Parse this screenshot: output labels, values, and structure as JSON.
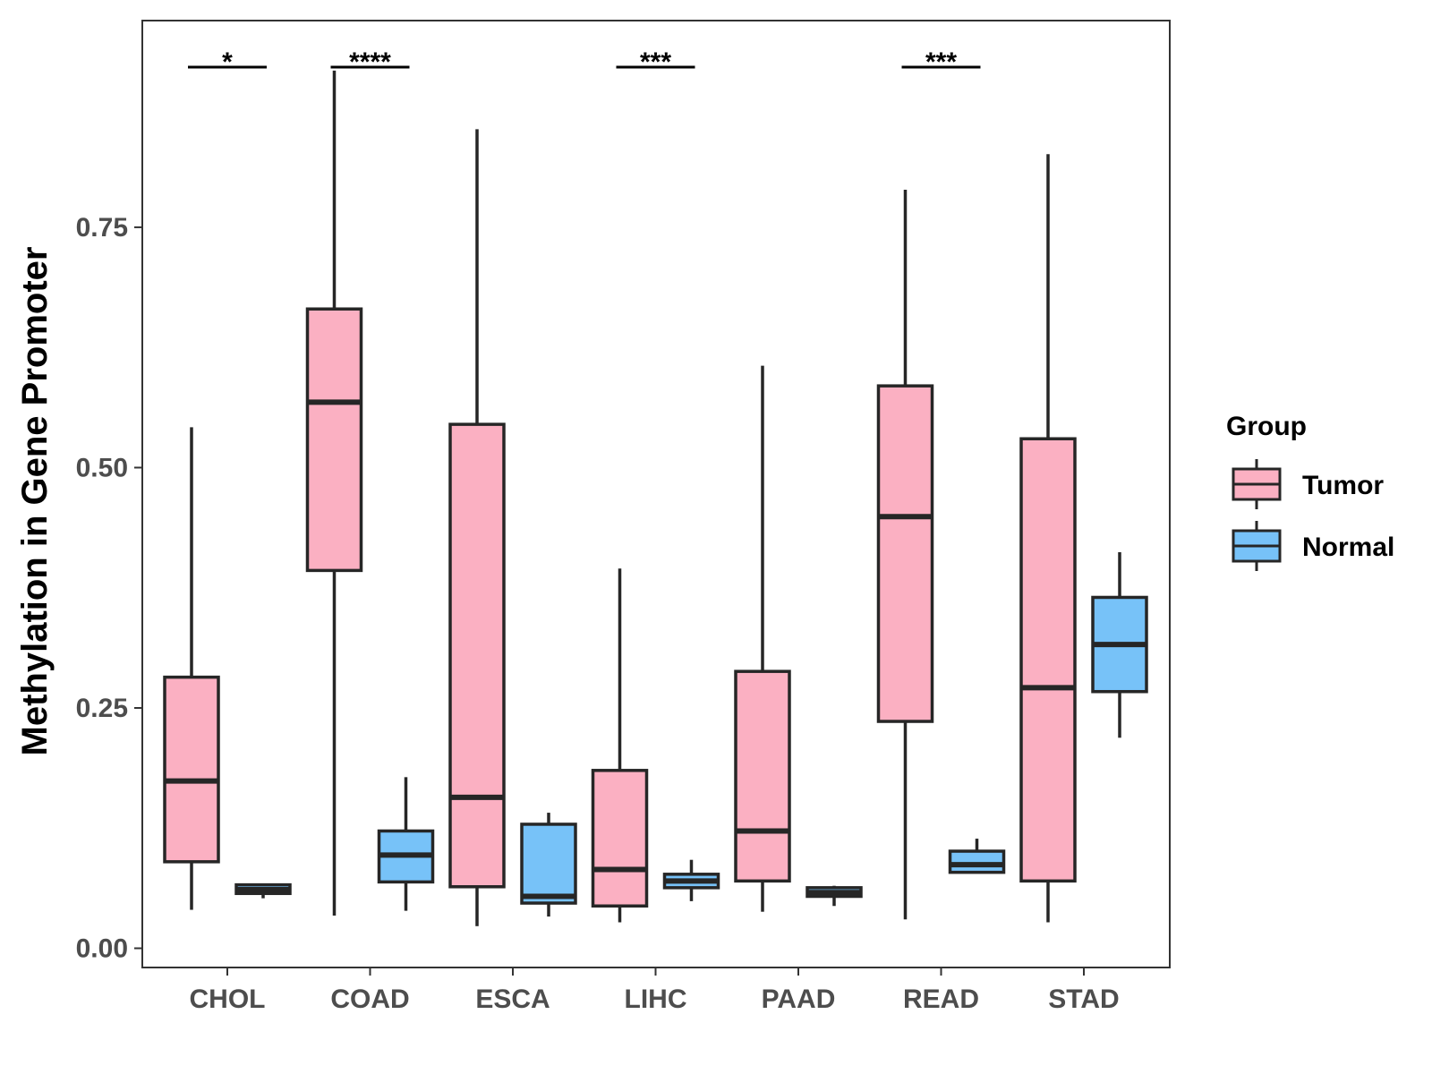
{
  "chart_data": {
    "type": "boxplot",
    "title": "",
    "xlabel": "",
    "ylabel": "Methylation in Gene Promoter",
    "ylim": [
      -0.02,
      0.965
    ],
    "yticks": [
      0.0,
      0.25,
      0.5,
      0.75
    ],
    "ytick_labels": [
      "0.00",
      "0.25",
      "0.50",
      "0.75"
    ],
    "grid": false,
    "categories": [
      "CHOL",
      "COAD",
      "ESCA",
      "LIHC",
      "PAAD",
      "READ",
      "STAD"
    ],
    "legend": {
      "title": "Group",
      "position": "right",
      "entries": [
        {
          "name": "Tumor",
          "color": "#FBB0C2"
        },
        {
          "name": "Normal",
          "color": "#77C2F8"
        }
      ]
    },
    "series": [
      {
        "name": "Tumor",
        "color": "#FBB0C2",
        "boxes": [
          {
            "min": 0.04,
            "q1": 0.09,
            "median": 0.174,
            "q3": 0.282,
            "max": 0.542
          },
          {
            "min": 0.034,
            "q1": 0.393,
            "median": 0.568,
            "q3": 0.665,
            "max": 0.913
          },
          {
            "min": 0.023,
            "q1": 0.064,
            "median": 0.157,
            "q3": 0.545,
            "max": 0.852
          },
          {
            "min": 0.027,
            "q1": 0.044,
            "median": 0.082,
            "q3": 0.185,
            "max": 0.395
          },
          {
            "min": 0.038,
            "q1": 0.07,
            "median": 0.122,
            "q3": 0.288,
            "max": 0.606
          },
          {
            "min": 0.03,
            "q1": 0.236,
            "median": 0.449,
            "q3": 0.585,
            "max": 0.789
          },
          {
            "min": 0.027,
            "q1": 0.07,
            "median": 0.271,
            "q3": 0.53,
            "max": 0.826
          }
        ]
      },
      {
        "name": "Normal",
        "color": "#77C2F8",
        "boxes": [
          {
            "min": 0.052,
            "q1": 0.057,
            "median": 0.061,
            "q3": 0.066,
            "max": 0.066
          },
          {
            "min": 0.039,
            "q1": 0.069,
            "median": 0.097,
            "q3": 0.122,
            "max": 0.178
          },
          {
            "min": 0.033,
            "q1": 0.047,
            "median": 0.054,
            "q3": 0.129,
            "max": 0.141
          },
          {
            "min": 0.049,
            "q1": 0.063,
            "median": 0.07,
            "q3": 0.077,
            "max": 0.092
          },
          {
            "min": 0.044,
            "q1": 0.054,
            "median": 0.058,
            "q3": 0.063,
            "max": 0.065
          },
          {
            "min": 0.079,
            "q1": 0.079,
            "median": 0.087,
            "q3": 0.101,
            "max": 0.114
          },
          {
            "min": 0.219,
            "q1": 0.267,
            "median": 0.316,
            "q3": 0.365,
            "max": 0.412
          }
        ]
      }
    ],
    "significance": [
      {
        "category": "CHOL",
        "label": "*"
      },
      {
        "category": "COAD",
        "label": "****"
      },
      {
        "category": "LIHC",
        "label": "***"
      },
      {
        "category": "READ",
        "label": "***"
      }
    ]
  }
}
